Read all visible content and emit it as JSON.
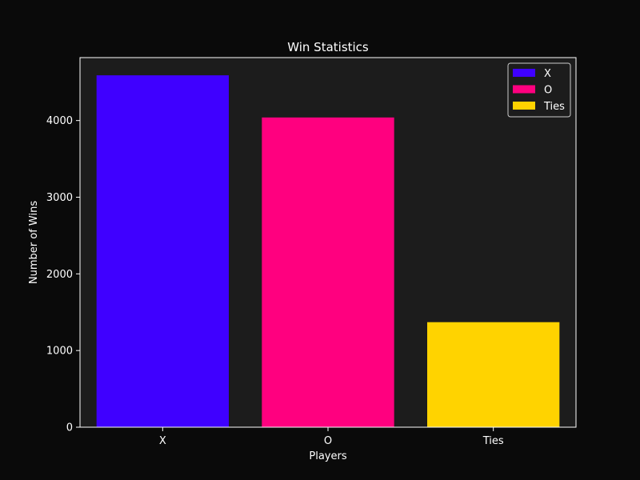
{
  "chart_data": {
    "type": "bar",
    "title": "Win Statistics",
    "xlabel": "Players",
    "ylabel": "Number of Wins",
    "categories": [
      "X",
      "O",
      "Ties"
    ],
    "values": [
      4590,
      4040,
      1370
    ],
    "colors": [
      "#3f00ff",
      "#ff007f",
      "#ffd300"
    ],
    "ylim": [
      0,
      4821
    ],
    "yticks": [
      0,
      1000,
      2000,
      3000,
      4000
    ],
    "ytick_labels": [
      "0",
      "1000",
      "2000",
      "3000",
      "4000"
    ],
    "legend": {
      "placement": "top-right",
      "entries": [
        "X",
        "O",
        "Ties"
      ]
    },
    "grid": false,
    "colors_theme": {
      "figure_bg": "#0a0a0a",
      "axes_bg": "#1c1c1c",
      "spine": "#ffffff",
      "text": "#ffffff"
    }
  }
}
